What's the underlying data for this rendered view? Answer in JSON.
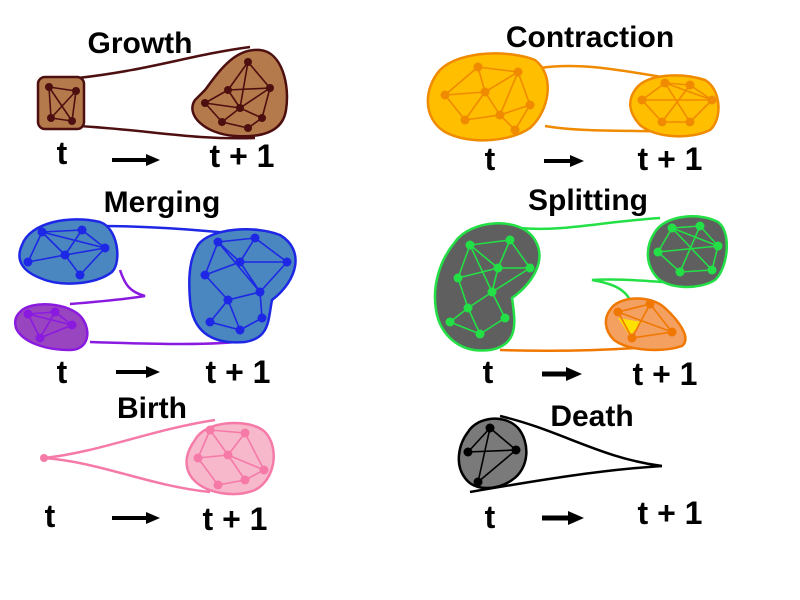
{
  "time_labels": {
    "start": "t",
    "end": "t + 1"
  },
  "panels": {
    "growth": {
      "title": "Growth",
      "colors": {
        "fill": "#b57a4c",
        "edge": "#4d0f0f"
      }
    },
    "contraction": {
      "title": "Contraction",
      "colors": {
        "fill": "#ffbe00",
        "edge": "#f08a00"
      }
    },
    "merging": {
      "title": "Merging",
      "colors": {
        "fill": "#4a86c0",
        "edge": "#1d27e5",
        "fill_b": "#9a45c0",
        "edge_b": "#8a1ae0"
      }
    },
    "splitting": {
      "title": "Splitting",
      "colors": {
        "fill": "#5f5f5f",
        "edge": "#22e045",
        "fill_b": "#f4a060",
        "edge_b": "#f07800"
      }
    },
    "birth": {
      "title": "Birth",
      "colors": {
        "fill": "#f7b8cc",
        "edge": "#f57aa8"
      }
    },
    "death": {
      "title": "Death",
      "colors": {
        "fill": "#7a7a7a",
        "edge": "#000000"
      }
    }
  }
}
